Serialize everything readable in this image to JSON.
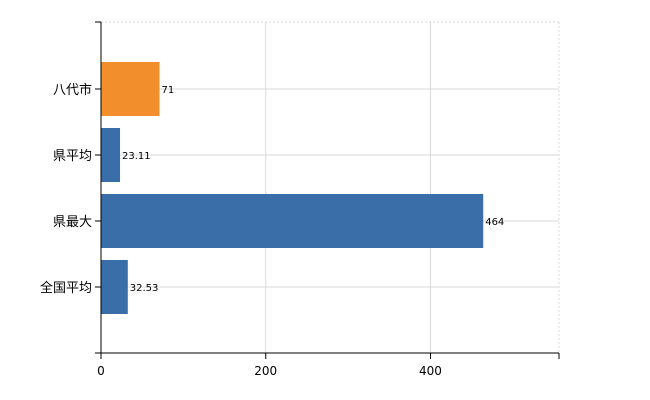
{
  "chart_data": {
    "type": "bar",
    "orientation": "horizontal",
    "categories": [
      "八代市",
      "県平均",
      "県最大",
      "全国平均"
    ],
    "values": [
      71,
      23.11,
      464,
      32.53
    ],
    "value_labels": [
      "71",
      "23.11",
      "464",
      "32.53"
    ],
    "highlight_index": 0,
    "colors": {
      "highlight": "#f28e2b",
      "default": "#3a6ea8",
      "grid": "#d9d9d9",
      "axis": "#000000"
    },
    "x_ticks": [
      0,
      200,
      400
    ],
    "x_tick_labels": [
      "0",
      "200",
      "400"
    ],
    "xlim": [
      0,
      556
    ],
    "title": "",
    "xlabel": "",
    "ylabel": "",
    "grid": true,
    "legend": "none"
  }
}
